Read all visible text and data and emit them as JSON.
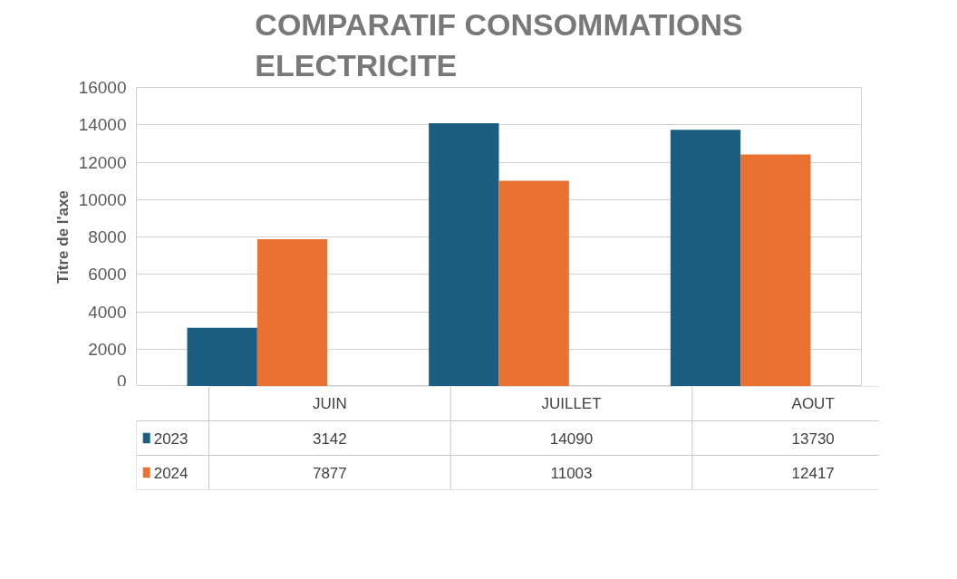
{
  "chart_data": {
    "type": "bar",
    "title": "COMPARATIF CONSOMMATIONS ELECTRICITE",
    "ylabel": "Titre de l'axe",
    "categories": [
      "JUIN",
      "JUILLET",
      "AOUT"
    ],
    "series": [
      {
        "name": "2023",
        "color": "#1b5e82",
        "values": [
          3142,
          14090,
          13730
        ]
      },
      {
        "name": "2024",
        "color": "#e97132",
        "values": [
          7877,
          11003,
          12417
        ]
      }
    ],
    "ylim": [
      0,
      16000
    ],
    "yticks": [
      0,
      2000,
      4000,
      6000,
      8000,
      10000,
      12000,
      14000,
      16000
    ],
    "grid": "y",
    "legend": "bottom",
    "data_labels": true,
    "tick_labels": "y"
  }
}
